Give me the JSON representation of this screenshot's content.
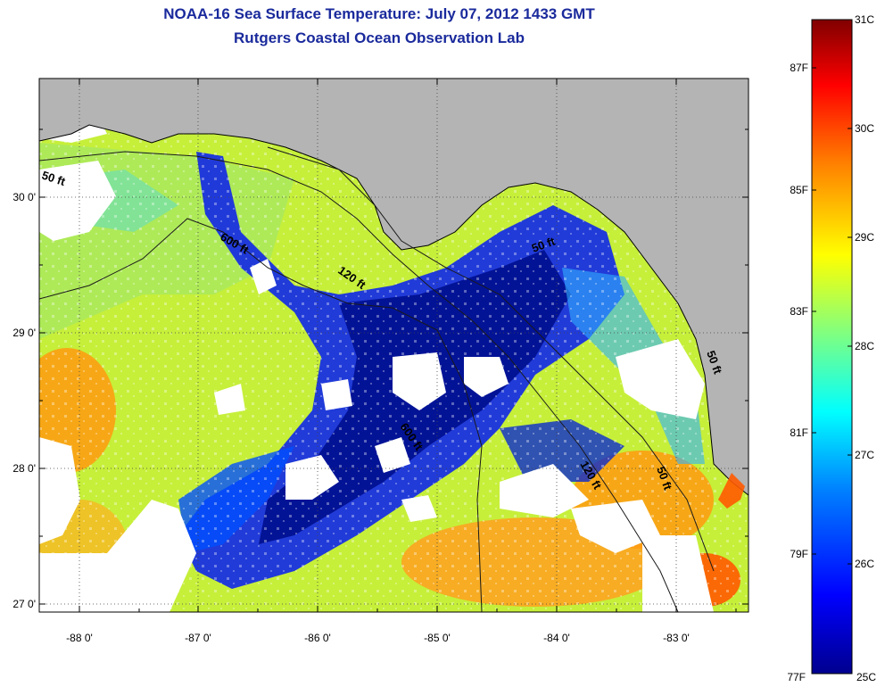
{
  "title_line1": "NOAA-16 Sea Surface Temperature:  July 07, 2012 1433 GMT",
  "title_line2": "Rutgers Coastal Ocean Observation Lab",
  "map": {
    "x_ticks": [
      "-88 0'",
      "-87 0'",
      "-86 0'",
      "-85 0'",
      "-84 0'",
      "-83 0'"
    ],
    "y_ticks": [
      "30 0'",
      "29 0'",
      "28 0'",
      "27 0'"
    ],
    "contour_labels": [
      "50 ft",
      "600 ft",
      "120 ft",
      "50 ft",
      "600 ft",
      "120 ft",
      "50 ft",
      "50 ft"
    ],
    "land_color": "#b4b4b4",
    "cloud_color": "#ffffff"
  },
  "colorbar": {
    "celsius_labels": [
      "31C",
      "30C",
      "29C",
      "28C",
      "27C",
      "26C",
      "25C"
    ],
    "fahrenheit_labels": [
      "87F",
      "85F",
      "83F",
      "81F",
      "79F",
      "77F"
    ],
    "min_c": 25,
    "max_c": 31,
    "colors": [
      "#00008f",
      "#0000ff",
      "#0080ff",
      "#00ffff",
      "#80ff80",
      "#ffff00",
      "#ff8000",
      "#ff0000",
      "#800000"
    ]
  }
}
